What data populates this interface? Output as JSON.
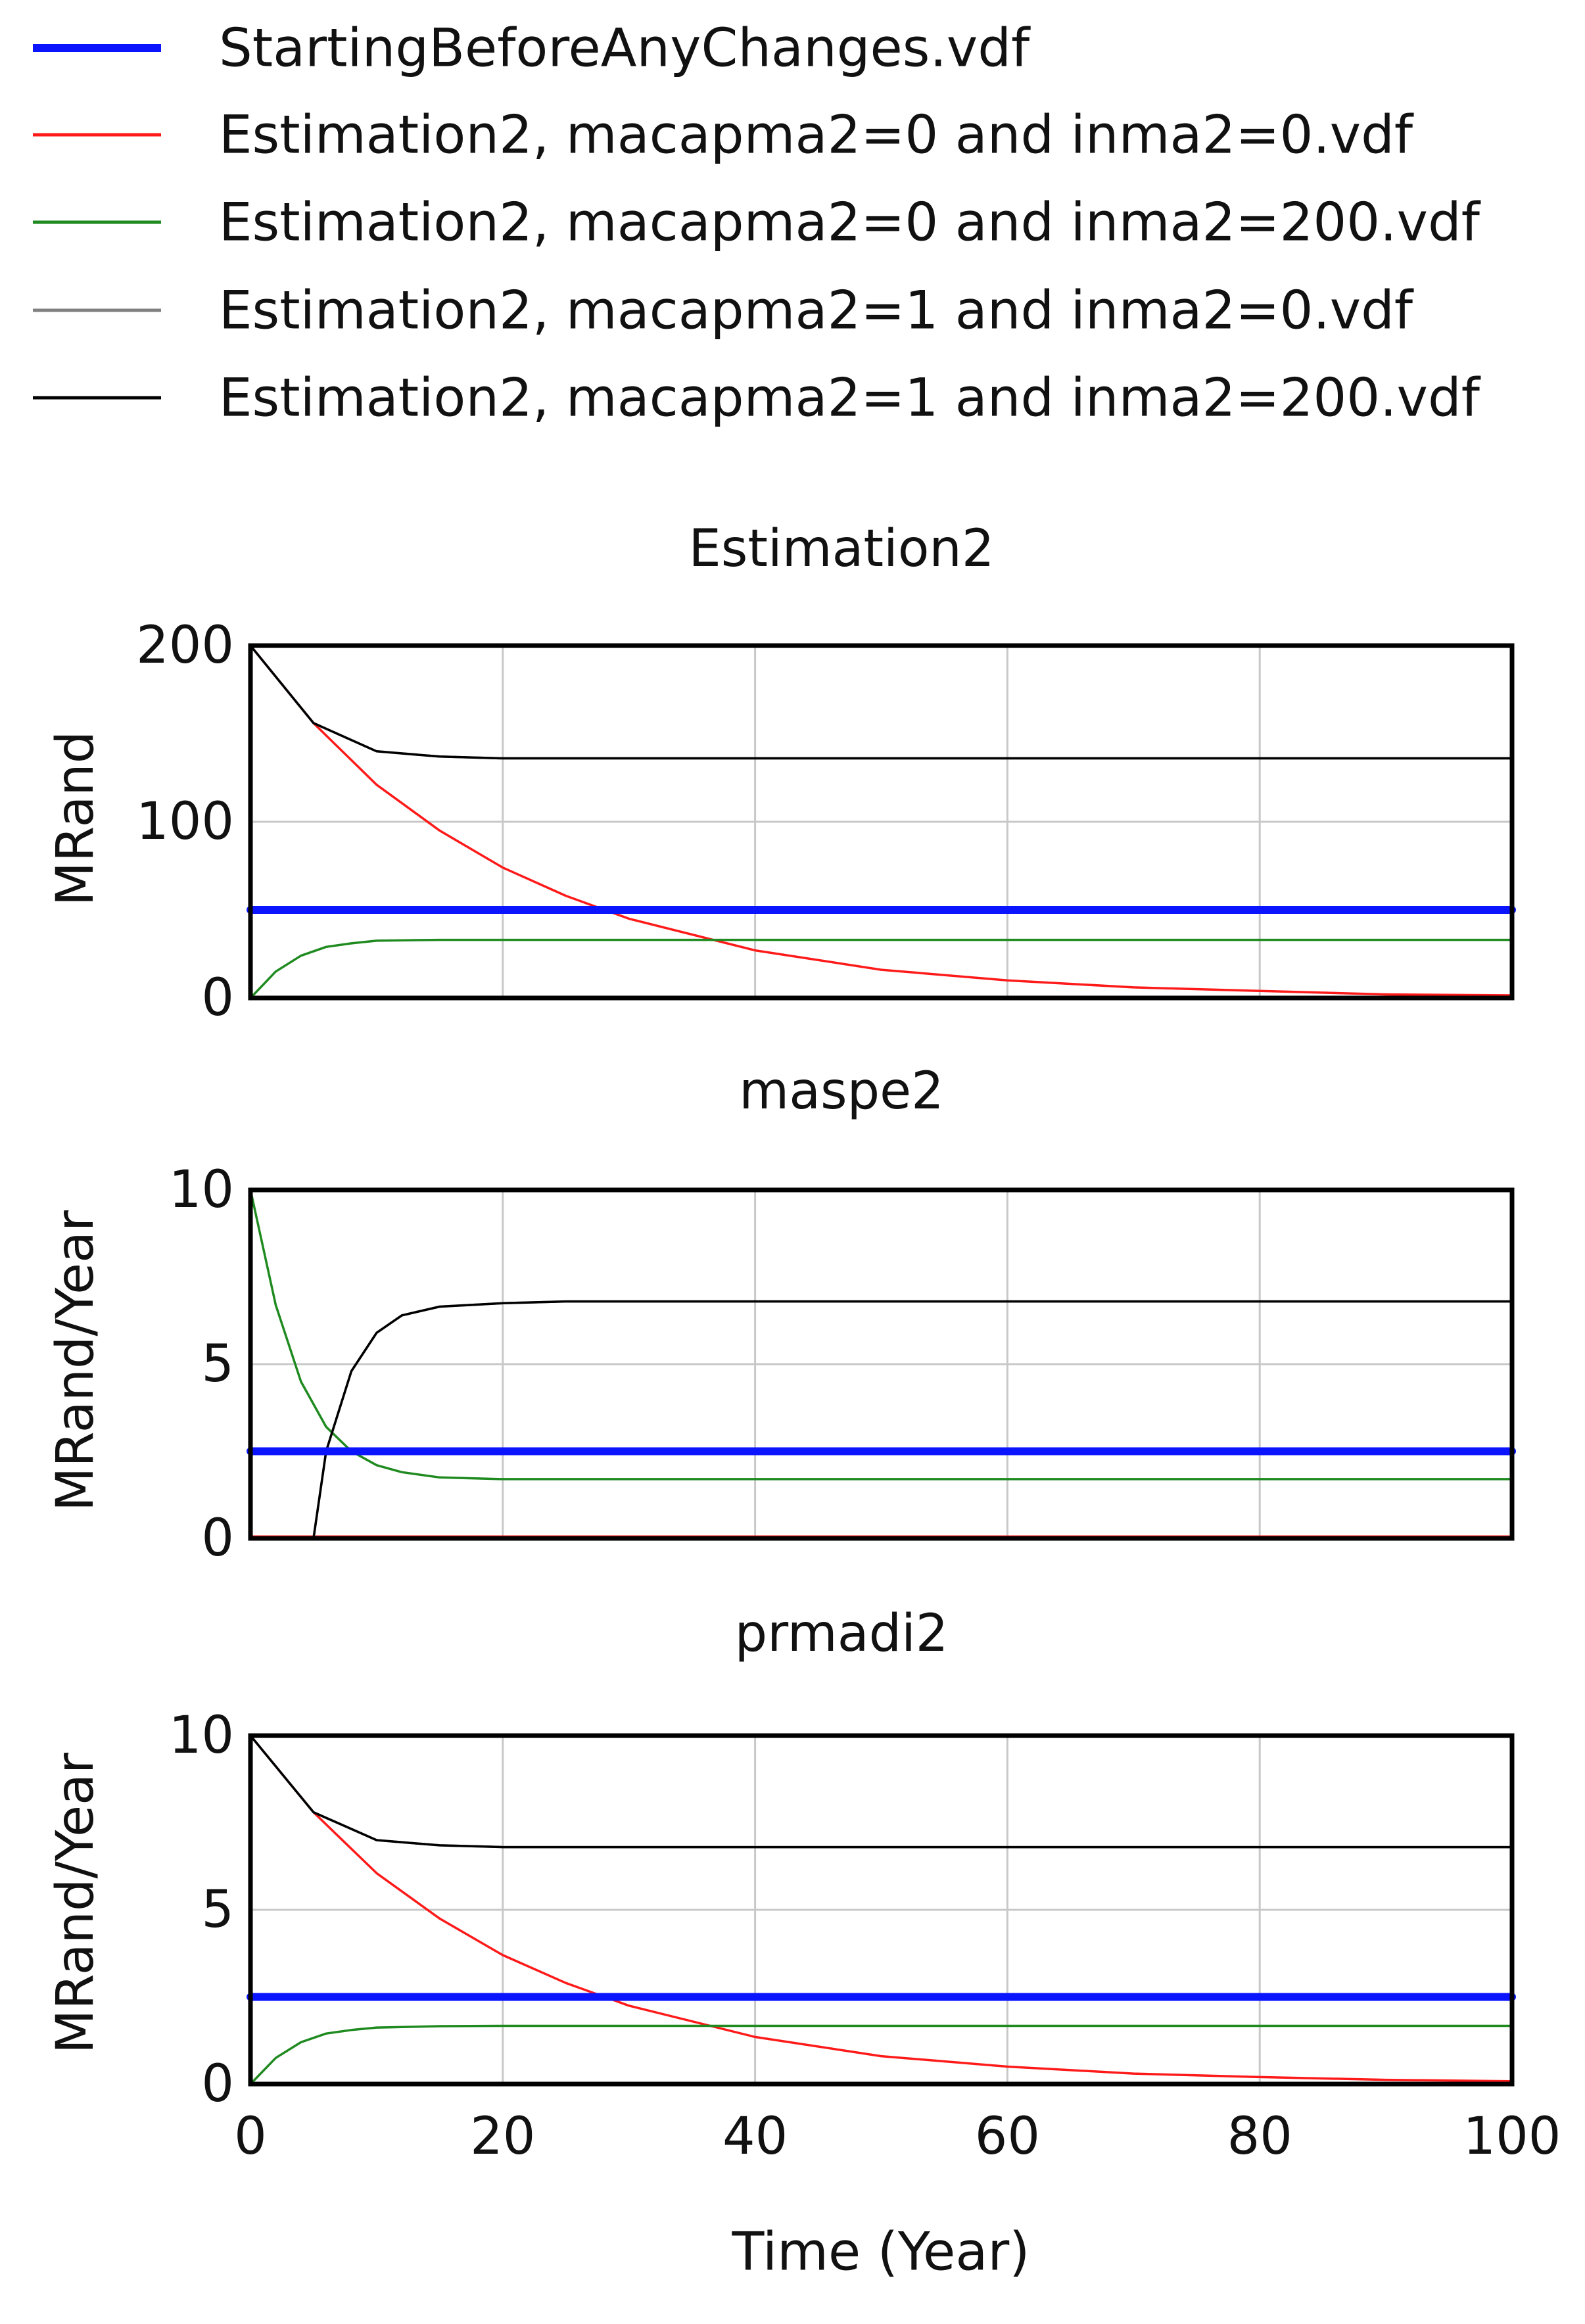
{
  "legend": [
    {
      "name": "StartingBeforeAnyChanges.vdf",
      "color": "#0a14ff",
      "width": 12
    },
    {
      "name": "Estimation2, macapma2=0 and inma2=0.vdf",
      "color": "#ff1a1a",
      "width": 5
    },
    {
      "name": "Estimation2, macapma2=0 and inma2=200.vdf",
      "color": "#1f8a1f",
      "width": 5
    },
    {
      "name": "Estimation2, macapma2=1 and inma2=0.vdf",
      "color": "#808080",
      "width": 5
    },
    {
      "name": "Estimation2, macapma2=1 and inma2=200.vdf",
      "color": "#000000",
      "width": 5
    }
  ],
  "chart_data": [
    {
      "type": "line",
      "title": "Estimation2",
      "xlabel": "",
      "ylabel": "MRand",
      "xlim": [
        0,
        100
      ],
      "ylim": [
        0,
        200
      ],
      "xticks": [
        0,
        20,
        40,
        60,
        80,
        100
      ],
      "yticks": [
        0,
        100,
        200
      ],
      "grid": true,
      "series": [
        {
          "name": "StartingBeforeAnyChanges.vdf",
          "x": [
            0,
            100
          ],
          "values": [
            50,
            50
          ]
        },
        {
          "name": "Estimation2, macapma2=0 and inma2=0.vdf",
          "x": [
            0,
            5,
            10,
            15,
            20,
            25,
            30,
            40,
            50,
            60,
            70,
            80,
            90,
            100
          ],
          "values": [
            200,
            156,
            121,
            95,
            74,
            58,
            45,
            27,
            16,
            10,
            6,
            4,
            2,
            1.5
          ]
        },
        {
          "name": "Estimation2, macapma2=0 and inma2=200.vdf",
          "x": [
            0,
            2,
            4,
            6,
            8,
            10,
            15,
            20,
            100
          ],
          "values": [
            0,
            15,
            24,
            29,
            31,
            32.5,
            33,
            33,
            33
          ]
        },
        {
          "name": "Estimation2, macapma2=1 and inma2=0.vdf",
          "x": [
            0,
            5,
            10,
            15,
            20,
            100
          ],
          "values": [
            200,
            156,
            140,
            137,
            136,
            136
          ]
        },
        {
          "name": "Estimation2, macapma2=1 and inma2=200.vdf",
          "x": [
            0,
            5,
            10,
            15,
            20,
            100
          ],
          "values": [
            200,
            156,
            140,
            137,
            136,
            136
          ]
        }
      ]
    },
    {
      "type": "line",
      "title": "maspe2",
      "xlabel": "",
      "ylabel": "MRand/Year",
      "xlim": [
        0,
        100
      ],
      "ylim": [
        0,
        10
      ],
      "xticks": [
        0,
        20,
        40,
        60,
        80,
        100
      ],
      "yticks": [
        0,
        5,
        10
      ],
      "grid": true,
      "series": [
        {
          "name": "StartingBeforeAnyChanges.vdf",
          "x": [
            0,
            100
          ],
          "values": [
            2.5,
            2.5
          ]
        },
        {
          "name": "Estimation2, macapma2=0 and inma2=0.vdf",
          "x": [
            0,
            100
          ],
          "values": [
            0.05,
            0.05
          ]
        },
        {
          "name": "Estimation2, macapma2=0 and inma2=200.vdf",
          "x": [
            0,
            2,
            4,
            6,
            8,
            10,
            12,
            15,
            20,
            100
          ],
          "values": [
            10,
            6.7,
            4.5,
            3.2,
            2.5,
            2.1,
            1.9,
            1.75,
            1.7,
            1.7
          ]
        },
        {
          "name": "Estimation2, macapma2=1 and inma2=0.vdf",
          "x": [
            0,
            5,
            6,
            8,
            10,
            12,
            15,
            20,
            25,
            100
          ],
          "values": [
            0,
            0,
            2.5,
            4.8,
            5.9,
            6.4,
            6.65,
            6.75,
            6.8,
            6.8
          ]
        },
        {
          "name": "Estimation2, macapma2=1 and inma2=200.vdf",
          "x": [
            0,
            5,
            6,
            8,
            10,
            12,
            15,
            20,
            25,
            100
          ],
          "values": [
            0,
            0,
            2.5,
            4.8,
            5.9,
            6.4,
            6.65,
            6.75,
            6.8,
            6.8
          ]
        }
      ]
    },
    {
      "type": "line",
      "title": "prmadi2",
      "xlabel": "Time (Year)",
      "ylabel": "MRand/Year",
      "xlim": [
        0,
        100
      ],
      "ylim": [
        0,
        10
      ],
      "xticks": [
        0,
        20,
        40,
        60,
        80,
        100
      ],
      "yticks": [
        0,
        5,
        10
      ],
      "grid": true,
      "series": [
        {
          "name": "StartingBeforeAnyChanges.vdf",
          "x": [
            0,
            100
          ],
          "values": [
            2.5,
            2.5
          ]
        },
        {
          "name": "Estimation2, macapma2=0 and inma2=0.vdf",
          "x": [
            0,
            5,
            10,
            15,
            20,
            25,
            30,
            40,
            50,
            60,
            70,
            80,
            90,
            100
          ],
          "values": [
            10,
            7.8,
            6.05,
            4.75,
            3.7,
            2.9,
            2.25,
            1.35,
            0.8,
            0.5,
            0.3,
            0.2,
            0.12,
            0.08
          ]
        },
        {
          "name": "Estimation2, macapma2=0 and inma2=200.vdf",
          "x": [
            0,
            2,
            4,
            6,
            8,
            10,
            15,
            20,
            100
          ],
          "values": [
            0,
            0.75,
            1.2,
            1.45,
            1.55,
            1.62,
            1.66,
            1.67,
            1.67
          ]
        },
        {
          "name": "Estimation2, macapma2=1 and inma2=0.vdf",
          "x": [
            0,
            5,
            10,
            15,
            20,
            100
          ],
          "values": [
            10,
            7.8,
            7.0,
            6.85,
            6.8,
            6.8
          ]
        },
        {
          "name": "Estimation2, macapma2=1 and inma2=200.vdf",
          "x": [
            0,
            5,
            10,
            15,
            20,
            100
          ],
          "values": [
            10,
            7.8,
            7.0,
            6.85,
            6.8,
            6.8
          ]
        }
      ]
    }
  ]
}
